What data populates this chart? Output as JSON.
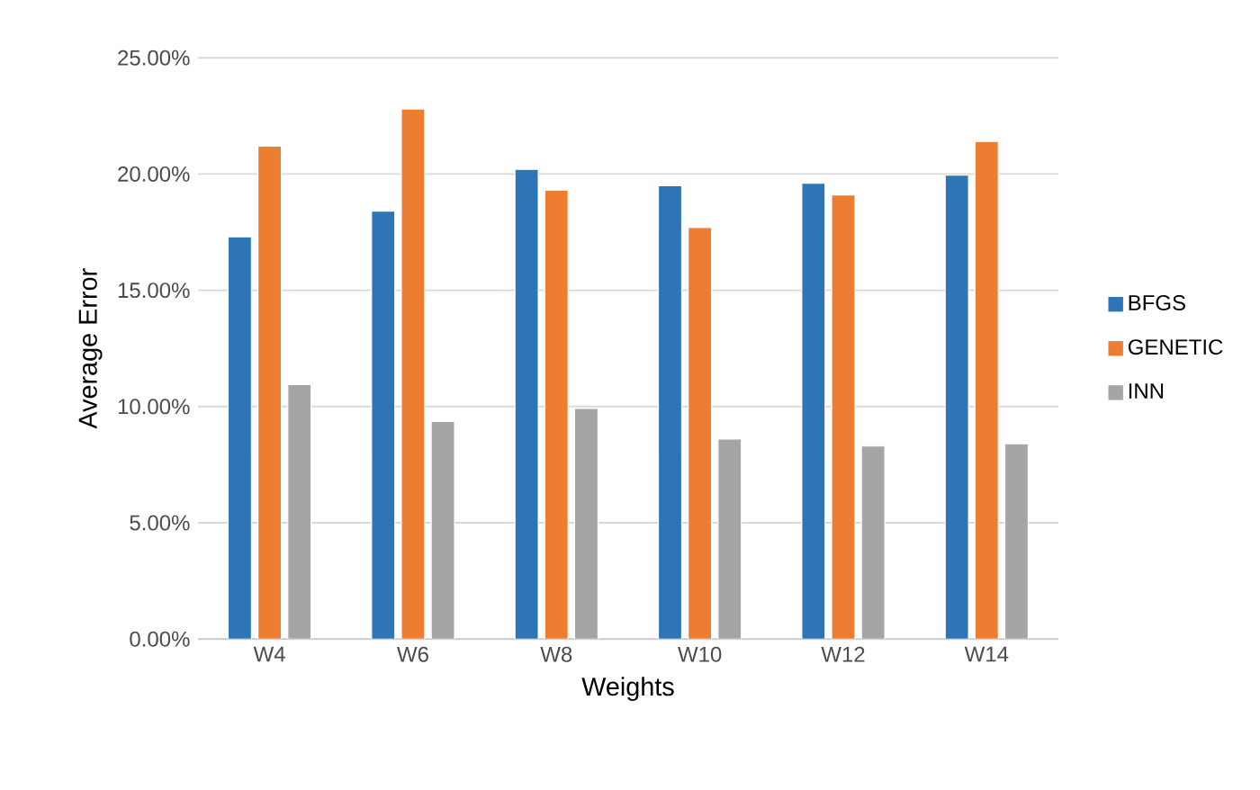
{
  "chart_data": {
    "type": "bar",
    "xlabel": "Weights",
    "ylabel": "Average Error",
    "categories": [
      "W4",
      "W6",
      "W8",
      "W10",
      "W12",
      "W14"
    ],
    "series": [
      {
        "name": "BFGS",
        "color": "#2e75b6",
        "values": [
          0.173,
          0.184,
          0.202,
          0.195,
          0.196,
          0.1995
        ]
      },
      {
        "name": "GENETIC",
        "color": "#ed7d31",
        "values": [
          0.212,
          0.228,
          0.193,
          0.177,
          0.191,
          0.214
        ]
      },
      {
        "name": "INN",
        "color": "#a5a5a5",
        "values": [
          0.1095,
          0.0936,
          0.0992,
          0.086,
          0.083,
          0.084
        ]
      }
    ],
    "ylim": [
      0,
      0.25
    ],
    "yticks": [
      {
        "value": 0,
        "label": "0.00%"
      },
      {
        "value": 0.05,
        "label": "5.00%"
      },
      {
        "value": 0.1,
        "label": "10.00%"
      },
      {
        "value": 0.15,
        "label": "15.00%"
      },
      {
        "value": 0.2,
        "label": "20.00%"
      },
      {
        "value": 0.25,
        "label": "25.00%"
      }
    ],
    "grid": "y",
    "legend": "right"
  }
}
